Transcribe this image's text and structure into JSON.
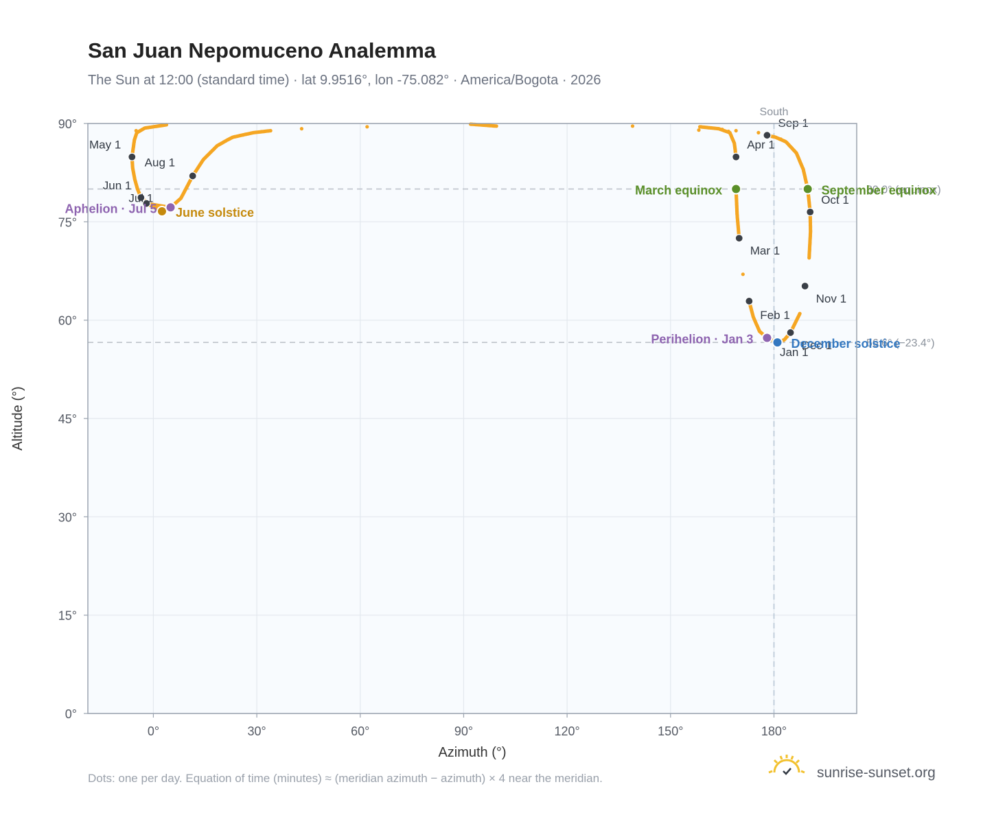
{
  "header": {
    "title": "San Juan Nepomuceno Analemma",
    "subtitle": "The Sun at 12:00 (standard time) · lat 9.9516°, lon -75.082° · America/Bogota · 2026"
  },
  "footer": {
    "note": "Dots: one per day. Equation of time (minutes) ≈ (meridian azimuth − azimuth) × 4 near the meridian.",
    "brand": "sunrise-sunset.org"
  },
  "colors": {
    "track": "#f5a623",
    "month_marker": "#3a3f47",
    "equinox": "#5a8f29",
    "june_solstice": "#c58a0d",
    "december_solstice": "#3478c0",
    "apsis": "#8e64b0",
    "reference": "#8a919b",
    "plot_bg": "#f8fbfe",
    "grid": "#e3e8ee",
    "frame": "#9aa3af"
  },
  "chart_data": {
    "type": "scatter",
    "title": "San Juan Nepomuceno Analemma",
    "xlabel": "Azimuth (°)",
    "ylabel": "Altitude (°)",
    "xlim": [
      -19,
      204
    ],
    "ylim": [
      0,
      90
    ],
    "x_ticks": [
      {
        "value": 0,
        "label": "0°"
      },
      {
        "value": 30,
        "label": "30°"
      },
      {
        "value": 60,
        "label": "60°"
      },
      {
        "value": 90,
        "label": "90°"
      },
      {
        "value": 120,
        "label": "120°"
      },
      {
        "value": 150,
        "label": "150°"
      },
      {
        "value": 180,
        "label": "180°"
      }
    ],
    "y_ticks": [
      {
        "value": 0,
        "label": "0°"
      },
      {
        "value": 15,
        "label": "15°"
      },
      {
        "value": 30,
        "label": "30°"
      },
      {
        "value": 45,
        "label": "45°"
      },
      {
        "value": 60,
        "label": "60°"
      },
      {
        "value": 75,
        "label": "75°"
      },
      {
        "value": 90,
        "label": "90°"
      }
    ],
    "grid": true,
    "meridian": {
      "azimuth": 180,
      "label": "South"
    },
    "reference_lines": [
      {
        "altitude": 80.0,
        "label": "80.0° (equinox)",
        "label_overlaps": true
      },
      {
        "altitude": 56.6,
        "label": "56.6° (−23.4°)",
        "label_overlaps": true
      }
    ],
    "daily_track": [
      {
        "date": "Jan 1",
        "azimuth": 180.9,
        "altitude": 56.6
      },
      {
        "date": "Jan 3",
        "azimuth": 178.0,
        "altitude": 57.3
      },
      {
        "date": "Jan 10",
        "azimuth": 175.8,
        "altitude": 58.3
      },
      {
        "date": "Jan 20",
        "azimuth": 174.0,
        "altitude": 60.5
      },
      {
        "date": "Feb 1",
        "azimuth": 172.8,
        "altitude": 62.9
      },
      {
        "date": "Feb 15",
        "azimuth": 171.0,
        "altitude": 67.0
      },
      {
        "date": "Mar 1",
        "azimuth": 169.9,
        "altitude": 72.5
      },
      {
        "date": "Mar 10",
        "azimuth": 169.3,
        "altitude": 76.2
      },
      {
        "date": "Mar 20",
        "azimuth": 169.0,
        "altitude": 80.0
      },
      {
        "date": "Apr 1",
        "azimuth": 169.0,
        "altitude": 84.9
      },
      {
        "date": "Apr 8",
        "azimuth": 168.5,
        "altitude": 87.0
      },
      {
        "date": "Apr 15",
        "azimuth": 167.2,
        "altitude": 88.6
      },
      {
        "date": "Apr 18",
        "azimuth": 164.0,
        "altitude": 89.2
      },
      {
        "date": "Apr 20",
        "azimuth": 158.5,
        "altitude": 89.5
      },
      {
        "date": "Apr 22",
        "azimuth": 139.0,
        "altitude": 89.6
      },
      {
        "date": "Apr 23",
        "azimuth": 99.5,
        "altitude": 89.6
      },
      {
        "date": "Apr 24",
        "azimuth": 92.0,
        "altitude": 89.9
      },
      {
        "date": "Apr 25",
        "azimuth": 62.0,
        "altitude": 89.5
      },
      {
        "date": "Apr 26",
        "azimuth": 43.0,
        "altitude": 89.2
      },
      {
        "date": "Apr 27",
        "azimuth": 3.8,
        "altitude": 89.8
      },
      {
        "date": "Apr 28",
        "azimuth": -2.5,
        "altitude": 89.3
      },
      {
        "date": "Apr 29",
        "azimuth": -4.8,
        "altitude": 88.6
      },
      {
        "date": "Apr 30",
        "azimuth": -5.5,
        "altitude": 87.5
      },
      {
        "date": "May 1",
        "azimuth": -6.2,
        "altitude": 84.9
      },
      {
        "date": "May 8",
        "azimuth": -6.0,
        "altitude": 83.2
      },
      {
        "date": "May 15",
        "azimuth": -5.4,
        "altitude": 81.5
      },
      {
        "date": "May 22",
        "azimuth": -4.6,
        "altitude": 80.0
      },
      {
        "date": "Jun 1",
        "azimuth": -3.6,
        "altitude": 78.7
      },
      {
        "date": "Jun 11",
        "azimuth": -1.0,
        "altitude": 77.6
      },
      {
        "date": "Jun 21",
        "azimuth": 2.5,
        "altitude": 76.6
      },
      {
        "date": "Jul 1",
        "azimuth": -2.0,
        "altitude": 77.8
      },
      {
        "date": "Jul 5",
        "azimuth": 5.0,
        "altitude": 77.2
      },
      {
        "date": "Jul 15",
        "azimuth": 8.0,
        "altitude": 78.6
      },
      {
        "date": "Aug 1",
        "azimuth": 11.4,
        "altitude": 82.0
      },
      {
        "date": "Aug 10",
        "azimuth": 14.5,
        "altitude": 84.5
      },
      {
        "date": "Aug 18",
        "azimuth": 18.5,
        "altitude": 86.6
      },
      {
        "date": "Aug 22",
        "azimuth": 21.5,
        "altitude": 87.5
      },
      {
        "date": "Aug 24",
        "azimuth": 23.0,
        "altitude": 87.9
      },
      {
        "date": "Aug 26",
        "azimuth": 25.5,
        "altitude": 88.2
      },
      {
        "date": "Aug 28",
        "azimuth": 29.0,
        "altitude": 88.6
      },
      {
        "date": "Aug 29",
        "azimuth": 34.0,
        "altitude": 88.9
      },
      {
        "date": "Sep 1",
        "azimuth": 178.0,
        "altitude": 88.2
      },
      {
        "date": "Sep 3",
        "azimuth": 180.5,
        "altitude": 87.9
      },
      {
        "date": "Sep 6",
        "azimuth": 183.5,
        "altitude": 87.2
      },
      {
        "date": "Sep 10",
        "azimuth": 186.5,
        "altitude": 85.5
      },
      {
        "date": "Sep 15",
        "azimuth": 188.5,
        "altitude": 83.0
      },
      {
        "date": "Sep 23",
        "azimuth": 189.8,
        "altitude": 80.0
      },
      {
        "date": "Oct 1",
        "azimuth": 190.5,
        "altitude": 76.5
      },
      {
        "date": "Oct 10",
        "azimuth": 190.6,
        "altitude": 73.5
      },
      {
        "date": "Oct 20",
        "azimuth": 190.2,
        "altitude": 69.5
      },
      {
        "date": "Nov 1",
        "azimuth": 189.0,
        "altitude": 65.2
      },
      {
        "date": "Nov 15",
        "azimuth": 187.5,
        "altitude": 61.0
      },
      {
        "date": "Dec 1",
        "azimuth": 184.8,
        "altitude": 58.1
      },
      {
        "date": "Dec 10",
        "azimuth": 183.0,
        "altitude": 57.0
      },
      {
        "date": "Dec 21",
        "azimuth": 181.0,
        "altitude": 56.6
      },
      {
        "date": "Dec 31",
        "azimuth": 180.9,
        "altitude": 56.6
      }
    ],
    "isolated_dots": [
      {
        "azimuth": -5.0,
        "altitude": 88.9
      },
      {
        "azimuth": 158.2,
        "altitude": 89.0
      },
      {
        "azimuth": 165.0,
        "altitude": 89.1
      },
      {
        "azimuth": 166.8,
        "altitude": 88.8
      },
      {
        "azimuth": 169.0,
        "altitude": 88.9
      },
      {
        "azimuth": 175.5,
        "altitude": 88.6
      },
      {
        "azimuth": 182.0,
        "altitude": 87.6
      }
    ],
    "month_markers": [
      {
        "label": "Jan 1",
        "azimuth": 180.9,
        "altitude": 56.6,
        "dx": 4,
        "dy": 20,
        "anchor": "start"
      },
      {
        "label": "Feb 1",
        "azimuth": 172.8,
        "altitude": 62.9,
        "dx": 16,
        "dy": 26,
        "anchor": "start"
      },
      {
        "label": "Mar 1",
        "azimuth": 169.9,
        "altitude": 72.5,
        "dx": 16,
        "dy": 24,
        "anchor": "start"
      },
      {
        "label": "Apr 1",
        "azimuth": 169.0,
        "altitude": 84.9,
        "dx": 16,
        "dy": -12,
        "anchor": "start"
      },
      {
        "label": "May 1",
        "azimuth": -6.2,
        "altitude": 84.9,
        "dx": -16,
        "dy": -12,
        "anchor": "end"
      },
      {
        "label": "Jun 1",
        "azimuth": -3.6,
        "altitude": 78.7,
        "dx": -14,
        "dy": -12,
        "anchor": "end"
      },
      {
        "label": "Jul 1",
        "azimuth": -2.0,
        "altitude": 77.8,
        "dx": -26,
        "dy": -2,
        "anchor": "start"
      },
      {
        "label": "Aug 1",
        "azimuth": 11.4,
        "altitude": 82.0,
        "dx": -70,
        "dy": -14,
        "anchor": "start"
      },
      {
        "label": "Sep 1",
        "azimuth": 178.0,
        "altitude": 88.2,
        "dx": 16,
        "dy": -12,
        "anchor": "start"
      },
      {
        "label": "Oct 1",
        "azimuth": 190.5,
        "altitude": 76.5,
        "dx": 16,
        "dy": -12,
        "anchor": "start"
      },
      {
        "label": "Nov 1",
        "azimuth": 189.0,
        "altitude": 65.2,
        "dx": 16,
        "dy": 24,
        "anchor": "start"
      },
      {
        "label": "Dec 1",
        "azimuth": 184.8,
        "altitude": 58.1,
        "dx": 16,
        "dy": 24,
        "anchor": "start"
      }
    ],
    "events": [
      {
        "name": "March equinox",
        "azimuth": 169.0,
        "altitude": 80.0,
        "color": "#5a8f29",
        "dx": -20,
        "dy": 8,
        "anchor": "end"
      },
      {
        "name": "September equinox",
        "azimuth": 189.8,
        "altitude": 80.0,
        "color": "#5a8f29",
        "dx": 20,
        "dy": 8,
        "anchor": "start"
      },
      {
        "name": "June solstice",
        "azimuth": 2.5,
        "altitude": 76.6,
        "color": "#c58a0d",
        "dx": 20,
        "dy": 8,
        "anchor": "start"
      },
      {
        "name": "December solstice",
        "azimuth": 181.0,
        "altitude": 56.6,
        "color": "#3478c0",
        "dx": 20,
        "dy": 8,
        "anchor": "start"
      },
      {
        "name": "Aphelion · Jul 5",
        "azimuth": 5.0,
        "altitude": 77.2,
        "color": "#8e64b0",
        "dx": -20,
        "dy": 8,
        "anchor": "end"
      },
      {
        "name": "Perihelion · Jan 3",
        "azimuth": 178.0,
        "altitude": 57.3,
        "color": "#8e64b0",
        "dx": -20,
        "dy": 8,
        "anchor": "end"
      }
    ]
  }
}
